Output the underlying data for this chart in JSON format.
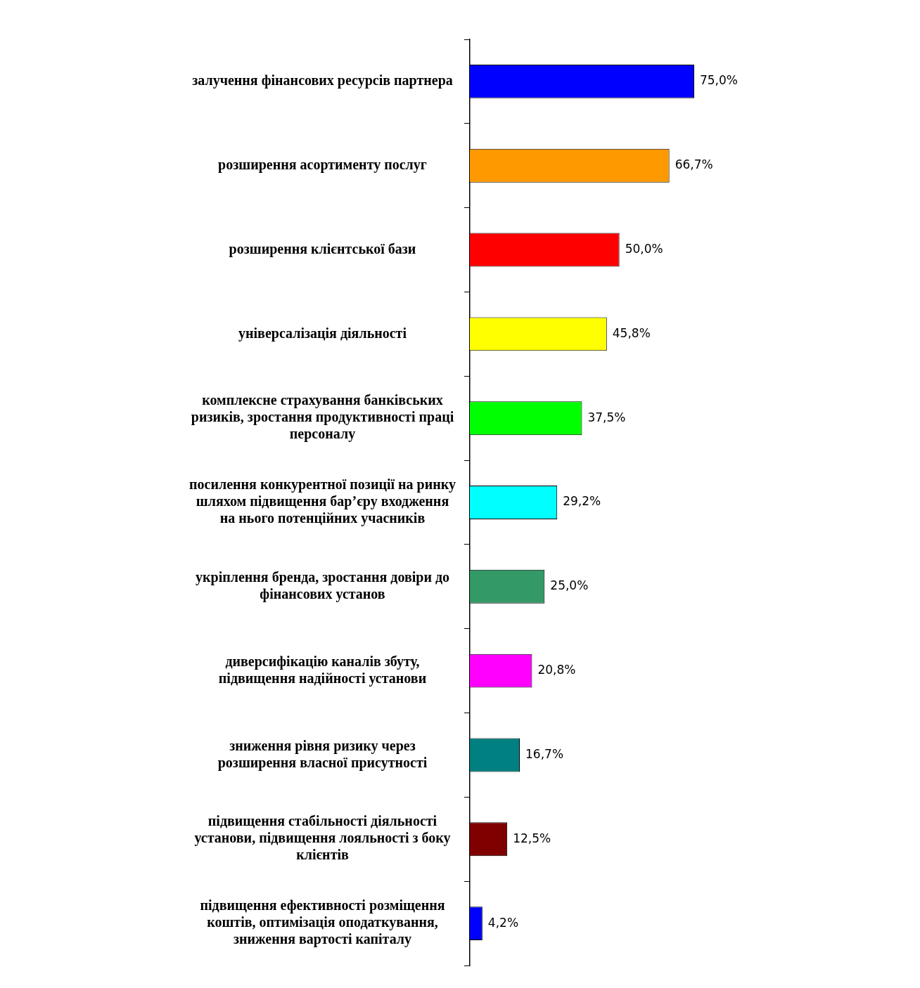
{
  "chart_data": {
    "type": "bar",
    "orientation": "horizontal",
    "categories": [
      "залучення фінансових ресурсів партнера",
      "розширення асортименту послуг",
      "розширення клієнтської бази",
      "універсалізація діяльності",
      "комплексне страхування банківських ризиків, зростання продуктивності праці персоналу",
      "посилення конкурентної позиції на ринку шляхом підвищення бар’єру входження на нього потенційних учасників",
      "укріплення бренда, зростання довіри до фінансових установ",
      "диверсифікацію каналів збуту, підвищення надійності установи",
      "зниження рівня ризику через розширення власної присутності",
      "підвищення стабільності діяльності установи, підвищення лояльності з боку клієнтів",
      "підвищення ефективності розміщення коштів, оптимізація оподаткування, зниження вартості капіталу"
    ],
    "values": [
      75.0,
      66.7,
      50.0,
      45.8,
      37.5,
      29.2,
      25.0,
      20.8,
      16.7,
      12.5,
      4.2
    ],
    "value_labels": [
      "75,0%",
      "66,7%",
      "50,0%",
      "45,8%",
      "37,5%",
      "29,2%",
      "25,0%",
      "20,8%",
      "16,7%",
      "12,5%",
      "4,2%"
    ],
    "colors": [
      "#0000ff",
      "#ff9900",
      "#ff0000",
      "#ffff00",
      "#00ff00",
      "#00ffff",
      "#339966",
      "#ff00ff",
      "#008080",
      "#800000",
      "#0000ff"
    ],
    "grid": false,
    "legend": false
  }
}
